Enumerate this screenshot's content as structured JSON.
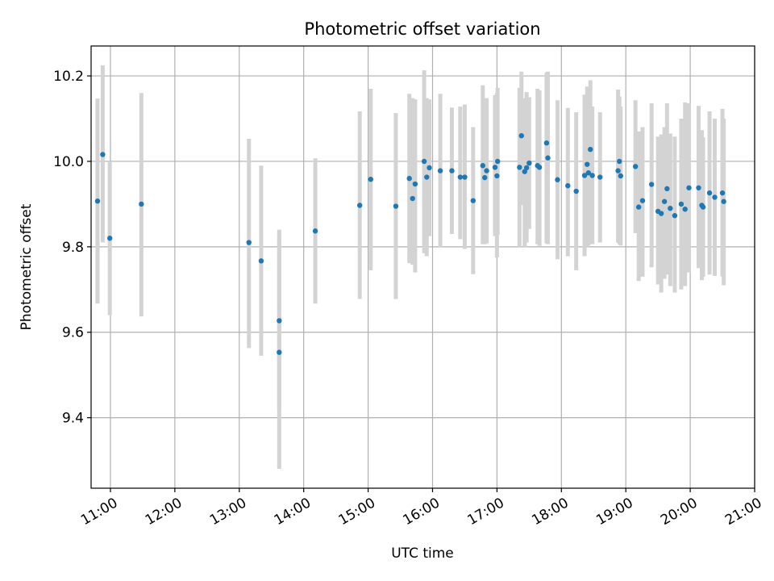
{
  "chart_data": {
    "type": "scatter",
    "title": "Photometric offset variation",
    "xlabel": "UTC time",
    "ylabel": "Photometric offset",
    "x_unit": "UTC time of day (hours)",
    "xlim": [
      10.7,
      21.0
    ],
    "ylim": [
      9.235,
      10.27
    ],
    "x_ticks": [
      11,
      12,
      13,
      14,
      15,
      16,
      17,
      18,
      19,
      20,
      21
    ],
    "x_tick_labels": [
      "11:00",
      "12:00",
      "13:00",
      "14:00",
      "15:00",
      "16:00",
      "17:00",
      "18:00",
      "19:00",
      "20:00",
      "21:00"
    ],
    "y_ticks": [
      9.4,
      9.6,
      9.8,
      10.0,
      10.2
    ],
    "y_tick_labels": [
      "9.4",
      "9.6",
      "9.8",
      "10.0",
      "10.2"
    ],
    "grid": true,
    "point_color": "#1f77b4",
    "errorbar_color": "#d3d3d3",
    "points": [
      {
        "x": 10.8,
        "y": 9.907,
        "lo": 9.667,
        "hi": 10.147
      },
      {
        "x": 10.88,
        "y": 10.016,
        "lo": 9.81,
        "hi": 10.225
      },
      {
        "x": 10.99,
        "y": 9.82,
        "lo": 9.64,
        "hi": 10.0
      },
      {
        "x": 11.48,
        "y": 9.9,
        "lo": 9.637,
        "hi": 10.16
      },
      {
        "x": 13.15,
        "y": 9.81,
        "lo": 9.563,
        "hi": 10.053
      },
      {
        "x": 13.34,
        "y": 9.767,
        "lo": 9.545,
        "hi": 9.99
      },
      {
        "x": 13.62,
        "y": 9.627,
        "lo": 9.42,
        "hi": 9.84
      },
      {
        "x": 13.62,
        "y": 9.553,
        "lo": 9.28,
        "hi": 9.83
      },
      {
        "x": 14.18,
        "y": 9.837,
        "lo": 9.667,
        "hi": 10.007
      },
      {
        "x": 14.87,
        "y": 9.897,
        "lo": 9.678,
        "hi": 10.117
      },
      {
        "x": 15.04,
        "y": 9.958,
        "lo": 9.745,
        "hi": 10.17
      },
      {
        "x": 15.43,
        "y": 9.895,
        "lo": 9.678,
        "hi": 10.113
      },
      {
        "x": 15.64,
        "y": 9.96,
        "lo": 9.762,
        "hi": 10.158
      },
      {
        "x": 15.69,
        "y": 9.913,
        "lo": 9.758,
        "hi": 10.148
      },
      {
        "x": 15.73,
        "y": 9.947,
        "lo": 9.74,
        "hi": 10.145
      },
      {
        "x": 15.87,
        "y": 10.0,
        "lo": 9.785,
        "hi": 10.213
      },
      {
        "x": 15.91,
        "y": 9.963,
        "lo": 9.778,
        "hi": 10.148
      },
      {
        "x": 15.95,
        "y": 9.985,
        "lo": 9.825,
        "hi": 10.145
      },
      {
        "x": 16.12,
        "y": 9.978,
        "lo": 9.798,
        "hi": 10.158
      },
      {
        "x": 16.3,
        "y": 9.978,
        "lo": 9.83,
        "hi": 10.126
      },
      {
        "x": 16.43,
        "y": 9.963,
        "lo": 9.818,
        "hi": 10.128
      },
      {
        "x": 16.5,
        "y": 9.963,
        "lo": 9.795,
        "hi": 10.133
      },
      {
        "x": 16.63,
        "y": 9.908,
        "lo": 9.736,
        "hi": 10.08
      },
      {
        "x": 16.78,
        "y": 9.99,
        "lo": 9.806,
        "hi": 10.178
      },
      {
        "x": 16.81,
        "y": 9.962,
        "lo": 9.806,
        "hi": 10.118
      },
      {
        "x": 16.84,
        "y": 9.978,
        "lo": 9.808,
        "hi": 10.148
      },
      {
        "x": 16.97,
        "y": 9.986,
        "lo": 9.825,
        "hi": 10.155
      },
      {
        "x": 17.0,
        "y": 9.966,
        "lo": 9.775,
        "hi": 10.16
      },
      {
        "x": 17.01,
        "y": 10.0,
        "lo": 9.828,
        "hi": 10.172
      },
      {
        "x": 17.35,
        "y": 9.986,
        "lo": 9.8,
        "hi": 10.172
      },
      {
        "x": 17.38,
        "y": 10.06,
        "lo": 9.898,
        "hi": 10.21
      },
      {
        "x": 17.43,
        "y": 9.976,
        "lo": 9.8,
        "hi": 10.148
      },
      {
        "x": 17.46,
        "y": 9.985,
        "lo": 9.81,
        "hi": 10.162
      },
      {
        "x": 17.5,
        "y": 9.996,
        "lo": 9.842,
        "hi": 10.15
      },
      {
        "x": 17.63,
        "y": 9.99,
        "lo": 9.806,
        "hi": 10.17
      },
      {
        "x": 17.66,
        "y": 9.986,
        "lo": 9.802,
        "hi": 10.166
      },
      {
        "x": 17.77,
        "y": 10.043,
        "lo": 9.808,
        "hi": 10.208
      },
      {
        "x": 17.79,
        "y": 10.008,
        "lo": 9.806,
        "hi": 10.21
      },
      {
        "x": 17.94,
        "y": 9.957,
        "lo": 9.771,
        "hi": 10.143
      },
      {
        "x": 18.1,
        "y": 9.943,
        "lo": 9.778,
        "hi": 10.125
      },
      {
        "x": 18.23,
        "y": 9.93,
        "lo": 9.745,
        "hi": 10.115
      },
      {
        "x": 18.36,
        "y": 9.967,
        "lo": 9.778,
        "hi": 10.156
      },
      {
        "x": 18.4,
        "y": 9.993,
        "lo": 9.8,
        "hi": 10.175
      },
      {
        "x": 18.42,
        "y": 9.973,
        "lo": 9.803,
        "hi": 10.153
      },
      {
        "x": 18.45,
        "y": 10.028,
        "lo": 9.81,
        "hi": 10.19
      },
      {
        "x": 18.48,
        "y": 9.967,
        "lo": 9.806,
        "hi": 10.128
      },
      {
        "x": 18.6,
        "y": 9.963,
        "lo": 9.81,
        "hi": 10.115
      },
      {
        "x": 18.88,
        "y": 9.978,
        "lo": 9.81,
        "hi": 10.168
      },
      {
        "x": 18.9,
        "y": 10.0,
        "lo": 9.806,
        "hi": 10.152
      },
      {
        "x": 18.92,
        "y": 9.966,
        "lo": 9.803,
        "hi": 10.128
      },
      {
        "x": 19.15,
        "y": 9.988,
        "lo": 9.832,
        "hi": 10.143
      },
      {
        "x": 19.2,
        "y": 9.893,
        "lo": 9.72,
        "hi": 10.07
      },
      {
        "x": 19.26,
        "y": 9.908,
        "lo": 9.73,
        "hi": 10.08
      },
      {
        "x": 19.4,
        "y": 9.946,
        "lo": 9.752,
        "hi": 10.136
      },
      {
        "x": 19.5,
        "y": 9.883,
        "lo": 9.712,
        "hi": 10.058
      },
      {
        "x": 19.55,
        "y": 9.878,
        "lo": 9.693,
        "hi": 10.063
      },
      {
        "x": 19.6,
        "y": 9.906,
        "lo": 9.725,
        "hi": 10.08
      },
      {
        "x": 19.64,
        "y": 9.936,
        "lo": 9.735,
        "hi": 10.136
      },
      {
        "x": 19.69,
        "y": 9.89,
        "lo": 9.708,
        "hi": 10.065
      },
      {
        "x": 19.76,
        "y": 9.873,
        "lo": 9.693,
        "hi": 10.058
      },
      {
        "x": 19.86,
        "y": 9.9,
        "lo": 9.7,
        "hi": 10.1
      },
      {
        "x": 19.92,
        "y": 9.888,
        "lo": 9.708,
        "hi": 10.138
      },
      {
        "x": 19.98,
        "y": 9.938,
        "lo": 9.74,
        "hi": 10.136
      },
      {
        "x": 20.13,
        "y": 9.938,
        "lo": 9.75,
        "hi": 10.13
      },
      {
        "x": 20.18,
        "y": 9.897,
        "lo": 9.722,
        "hi": 10.073
      },
      {
        "x": 20.2,
        "y": 9.893,
        "lo": 9.73,
        "hi": 10.056
      },
      {
        "x": 20.3,
        "y": 9.926,
        "lo": 9.735,
        "hi": 10.117
      },
      {
        "x": 20.38,
        "y": 9.916,
        "lo": 9.732,
        "hi": 10.1
      },
      {
        "x": 20.5,
        "y": 9.926,
        "lo": 9.73,
        "hi": 10.123
      },
      {
        "x": 20.52,
        "y": 9.906,
        "lo": 9.71,
        "hi": 10.1
      }
    ]
  }
}
